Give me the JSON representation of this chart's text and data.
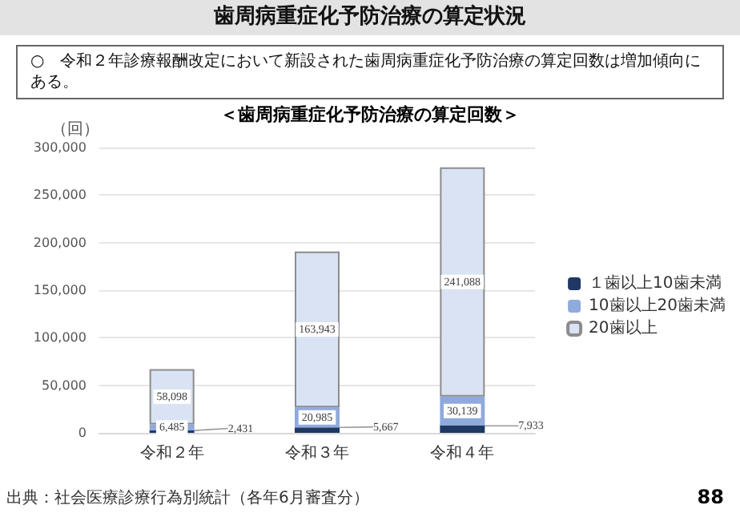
{
  "chart_data": {
    "type": "bar",
    "title": "歯周病重症化予防治療の算定状況",
    "subtitle": "○　令和２年診療報酬改定において新設された歯周病重症化予防治療の算定回数は増加傾向にある。",
    "annotations": [
      "＜歯周病重症化予防治療の算定回数＞",
      "出典：社会医療診療行為別統計（各年6月審査分）",
      "88"
    ],
    "ylabel": "（回）",
    "categories": [
      "令和２年",
      "令和３年",
      "令和４年"
    ],
    "stacked": true,
    "series": [
      {
        "name": "１歯以上10歯未満",
        "color": "#1f3864",
        "values": [
          2431,
          5667,
          7933
        ],
        "value_labels": [
          "2,431",
          "5,667",
          "7,933"
        ]
      },
      {
        "name": "10歯以上20歯未満",
        "color": "#8faadc",
        "values": [
          6485,
          20985,
          30139
        ],
        "value_labels": [
          "6,485",
          "20,985",
          "30,139"
        ]
      },
      {
        "name": "20歯以上",
        "color": "#dae3f3",
        "values": [
          58098,
          163943,
          241088
        ],
        "value_labels": [
          "58,098",
          "163,943",
          "241,088"
        ]
      }
    ],
    "ylim": [
      0,
      300000
    ],
    "yticks": [
      0,
      {
        "value": 50000,
        "label": "50,000"
      },
      {
        "value": 100000,
        "label": "100,000"
      },
      {
        "value": 150000,
        "label": "150,000"
      },
      {
        "value": 200000,
        "label": "200,000"
      },
      {
        "value": 250000,
        "label": "250,000"
      },
      {
        "value": 300000,
        "label": "300,000"
      }
    ],
    "grid": "y",
    "legend": "right"
  }
}
